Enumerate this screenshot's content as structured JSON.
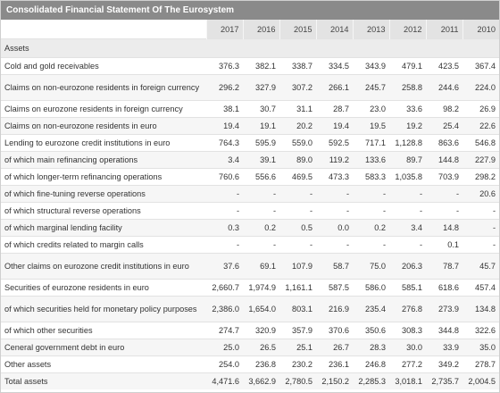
{
  "title": "Consolidated Financial Statement Of The Eurosystem",
  "years": [
    "2017",
    "2016",
    "2015",
    "2014",
    "2013",
    "2012",
    "2011",
    "2010"
  ],
  "section": "Assets",
  "rows": [
    {
      "label": "Cold and gold receivables",
      "values": [
        "376.3",
        "382.1",
        "338.7",
        "334.5",
        "343.9",
        "479.1",
        "423.5",
        "367.4"
      ]
    },
    {
      "label": "Claims on non-eurozone residents in foreign currency",
      "values": [
        "296.2",
        "327.9",
        "307.2",
        "266.1",
        "245.7",
        "258.8",
        "244.6",
        "224.0"
      ]
    },
    {
      "label": "Claims on eurozone residents in foreign currency",
      "values": [
        "38.1",
        "30.7",
        "31.1",
        "28.7",
        "23.0",
        "33.6",
        "98.2",
        "26.9"
      ]
    },
    {
      "label": "Claims on non-eurozone residents in euro",
      "values": [
        "19.4",
        "19.1",
        "20.2",
        "19.4",
        "19.5",
        "19.2",
        "25.4",
        "22.6"
      ]
    },
    {
      "label": "Lending to eurozone credit institutions in euro",
      "values": [
        "764.3",
        "595.9",
        "559.0",
        "592.5",
        "717.1",
        "1,128.8",
        "863.6",
        "546.8"
      ]
    },
    {
      "label": "of which main refinancing operations",
      "values": [
        "3.4",
        "39.1",
        "89.0",
        "119.2",
        "133.6",
        "89.7",
        "144.8",
        "227.9"
      ]
    },
    {
      "label": "of which longer-term refinancing operations",
      "values": [
        "760.6",
        "556.6",
        "469.5",
        "473.3",
        "583.3",
        "1,035.8",
        "703.9",
        "298.2"
      ]
    },
    {
      "label": "of which fine-tuning reverse operations",
      "values": [
        "-",
        "-",
        "-",
        "-",
        "-",
        "-",
        "-",
        "20.6"
      ]
    },
    {
      "label": "of which structural reverse operations",
      "values": [
        "-",
        "-",
        "-",
        "-",
        "-",
        "-",
        "-",
        "-"
      ]
    },
    {
      "label": "of which marginal lending facility",
      "values": [
        "0.3",
        "0.2",
        "0.5",
        "0.0",
        "0.2",
        "3.4",
        "14.8",
        "-"
      ]
    },
    {
      "label": "of which credits related to margin calls",
      "values": [
        "-",
        "-",
        "-",
        "-",
        "-",
        "-",
        "0.1",
        "-"
      ]
    },
    {
      "label": "Other claims on eurozone credit institutions in euro",
      "values": [
        "37.6",
        "69.1",
        "107.9",
        "58.7",
        "75.0",
        "206.3",
        "78.7",
        "45.7"
      ]
    },
    {
      "label": "Securities of eurozone residents in euro",
      "values": [
        "2,660.7",
        "1,974.9",
        "1,161.1",
        "587.5",
        "586.0",
        "585.1",
        "618.6",
        "457.4"
      ]
    },
    {
      "label": "of which securities held for monetary policy purposes",
      "values": [
        "2,386.0",
        "1,654.0",
        "803.1",
        "216.9",
        "235.4",
        "276.8",
        "273.9",
        "134.8"
      ]
    },
    {
      "label": "of which other securities",
      "values": [
        "274.7",
        "320.9",
        "357.9",
        "370.6",
        "350.6",
        "308.3",
        "344.8",
        "322.6"
      ]
    },
    {
      "label": "Ceneral government debt in euro",
      "values": [
        "25.0",
        "26.5",
        "25.1",
        "26.7",
        "28.3",
        "30.0",
        "33.9",
        "35.0"
      ]
    },
    {
      "label": "Other assets",
      "values": [
        "254.0",
        "236.8",
        "230.2",
        "236.1",
        "246.8",
        "277.2",
        "349.2",
        "278.7"
      ]
    },
    {
      "label": "Total assets",
      "values": [
        "4,471.6",
        "3,662.9",
        "2,780.5",
        "2,150.2",
        "2,285.3",
        "3,018.1",
        "2,735.7",
        "2,004.5"
      ]
    }
  ]
}
